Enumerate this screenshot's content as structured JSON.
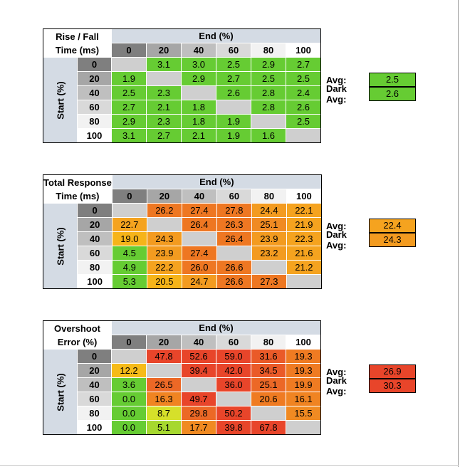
{
  "tables": [
    {
      "title_line1": "Rise / Fall",
      "title_line2": "Time (ms)",
      "end_label": "End (%)",
      "start_label": "Start (%)",
      "levels": [
        "0",
        "20",
        "40",
        "60",
        "80",
        "100"
      ],
      "rows": [
        [
          null,
          "3.1",
          "3.0",
          "2.5",
          "2.9",
          "2.7"
        ],
        [
          "1.9",
          null,
          "2.9",
          "2.7",
          "2.5",
          "2.5"
        ],
        [
          "2.5",
          "2.3",
          null,
          "2.6",
          "2.8",
          "2.4"
        ],
        [
          "2.7",
          "2.1",
          "1.8",
          null,
          "2.8",
          "2.6"
        ],
        [
          "2.9",
          "2.3",
          "1.8",
          "1.9",
          null,
          "2.5"
        ],
        [
          "3.1",
          "2.7",
          "2.1",
          "1.9",
          "1.6",
          null
        ]
      ],
      "colors": [
        [
          null,
          "#66cc33",
          "#66cc33",
          "#66cc33",
          "#66cc33",
          "#66cc33"
        ],
        [
          "#66cc33",
          null,
          "#66cc33",
          "#66cc33",
          "#66cc33",
          "#66cc33"
        ],
        [
          "#66cc33",
          "#66cc33",
          null,
          "#66cc33",
          "#66cc33",
          "#66cc33"
        ],
        [
          "#66cc33",
          "#66cc33",
          "#66cc33",
          null,
          "#66cc33",
          "#66cc33"
        ],
        [
          "#66cc33",
          "#66cc33",
          "#66cc33",
          "#66cc33",
          null,
          "#66cc33"
        ],
        [
          "#66cc33",
          "#66cc33",
          "#66cc33",
          "#66cc33",
          "#66cc33",
          null
        ]
      ],
      "avg_label": "Avg:",
      "avg_value": "2.5",
      "avg_color": "#66cc33",
      "dark_avg_label": "Dark Avg:",
      "dark_avg_value": "2.6",
      "dark_avg_color": "#66cc33"
    },
    {
      "title_line1": "Total Response",
      "title_line2": "Time (ms)",
      "end_label": "End (%)",
      "start_label": "Start (%)",
      "levels": [
        "0",
        "20",
        "40",
        "60",
        "80",
        "100"
      ],
      "rows": [
        [
          null,
          "26.2",
          "27.4",
          "27.8",
          "24.4",
          "22.1"
        ],
        [
          "22.7",
          null,
          "26.4",
          "26.3",
          "25.1",
          "21.9"
        ],
        [
          "19.0",
          "24.3",
          null,
          "26.4",
          "23.9",
          "22.3"
        ],
        [
          "4.5",
          "23.9",
          "27.4",
          null,
          "23.2",
          "21.6"
        ],
        [
          "4.9",
          "22.2",
          "26.0",
          "26.6",
          null,
          "21.2"
        ],
        [
          "5.3",
          "20.5",
          "24.7",
          "26.6",
          "27.3",
          null
        ]
      ],
      "colors": [
        [
          null,
          "#ee7722",
          "#ee7722",
          "#ee7722",
          "#f39b20",
          "#f5a31f"
        ],
        [
          "#f5a31f",
          null,
          "#ee7722",
          "#ee7722",
          "#f08a22",
          "#f5a31f"
        ],
        [
          "#f6b419",
          "#f39b20",
          null,
          "#ee7722",
          "#f39b20",
          "#f5a31f"
        ],
        [
          "#66cc33",
          "#f39b20",
          "#ee7722",
          null,
          "#f39b20",
          "#f5a31f"
        ],
        [
          "#66cc33",
          "#f5a31f",
          "#ee7722",
          "#ee7722",
          null,
          "#f5a31f"
        ],
        [
          "#66cc33",
          "#f6b419",
          "#f39b20",
          "#ee7722",
          "#ee7722",
          null
        ]
      ],
      "avg_label": "Avg:",
      "avg_value": "22.4",
      "avg_color": "#f5a31f",
      "dark_avg_label": "Dark Avg:",
      "dark_avg_value": "24.3",
      "dark_avg_color": "#f39b20"
    },
    {
      "title_line1": "Overshoot",
      "title_line2": "Error (%)",
      "end_label": "End (%)",
      "start_label": "Start (%)",
      "levels": [
        "0",
        "20",
        "40",
        "60",
        "80",
        "100"
      ],
      "rows": [
        [
          null,
          "47.8",
          "52.6",
          "59.0",
          "31.6",
          "19.3"
        ],
        [
          "12.2",
          null,
          "39.4",
          "42.0",
          "34.5",
          "19.3"
        ],
        [
          "3.6",
          "26.5",
          null,
          "36.0",
          "25.1",
          "19.9"
        ],
        [
          "0.0",
          "16.3",
          "49.7",
          null,
          "20.6",
          "16.1"
        ],
        [
          "0.0",
          "8.7",
          "29.8",
          "50.2",
          null,
          "15.5"
        ],
        [
          "0.0",
          "5.1",
          "17.7",
          "39.8",
          "67.8",
          null
        ]
      ],
      "colors": [
        [
          null,
          "#e8452a",
          "#e8452a",
          "#e8452a",
          "#ea5a28",
          "#ef7b22"
        ],
        [
          "#f6bb18",
          null,
          "#e8452a",
          "#e8452a",
          "#ea5a28",
          "#ef7b22"
        ],
        [
          "#66cc33",
          "#ec6826",
          null,
          "#e8452a",
          "#ec6826",
          "#ef7b22"
        ],
        [
          "#66cc33",
          "#f08422",
          "#e8452a",
          null,
          "#ef7b22",
          "#f08422"
        ],
        [
          "#66cc33",
          "#d6e02a",
          "#ec6826",
          "#e8452a",
          null,
          "#f08a22"
        ],
        [
          "#66cc33",
          "#a6d82f",
          "#f08a22",
          "#e8452a",
          "#e8452a",
          null
        ]
      ],
      "avg_label": "Avg:",
      "avg_value": "26.9",
      "avg_color": "#e8452a",
      "dark_avg_label": "Dark Avg:",
      "dark_avg_value": "30.3",
      "dark_avg_color": "#e8452a"
    }
  ],
  "diagonal_color": "#cfcfcf",
  "header_shades": [
    "#7f7f7f",
    "#a6a6a6",
    "#bfbfbf",
    "#d9d9d9",
    "#f2f2f2",
    "#ffffff"
  ]
}
